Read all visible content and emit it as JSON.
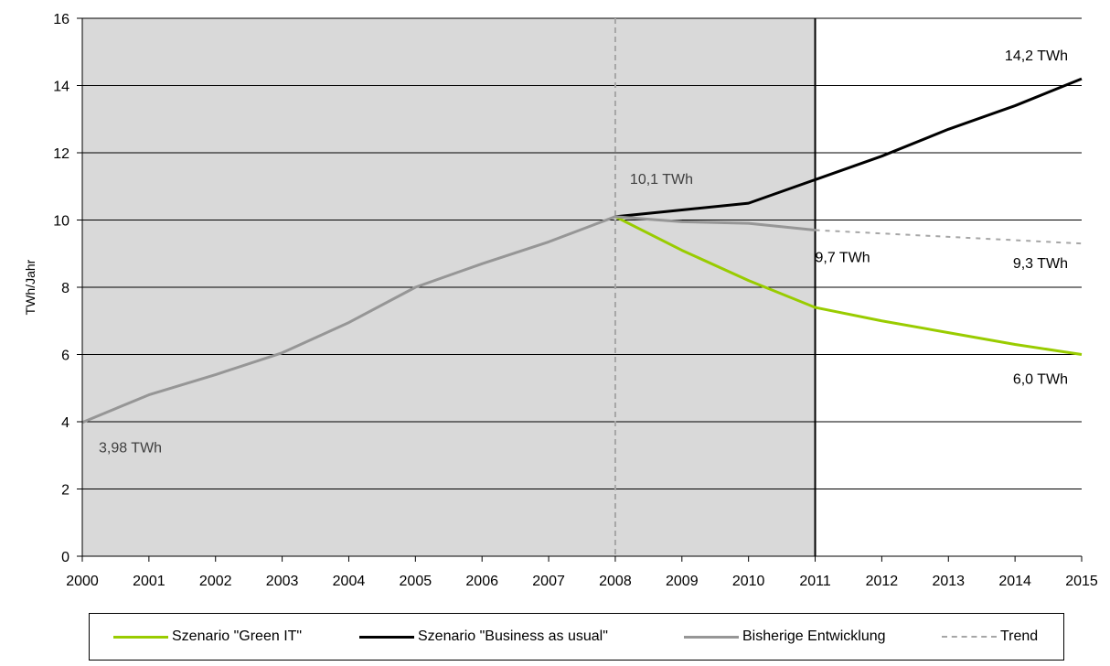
{
  "chart_data": {
    "type": "line",
    "title": "",
    "xlabel": "",
    "ylabel": "TWh/Jahr",
    "ylim": [
      0,
      16
    ],
    "yticks": [
      0,
      2,
      4,
      6,
      8,
      10,
      12,
      14,
      16
    ],
    "x": [
      2000,
      2001,
      2002,
      2003,
      2004,
      2005,
      2006,
      2007,
      2008,
      2009,
      2010,
      2011,
      2012,
      2013,
      2014,
      2015
    ],
    "xtick_labels": [
      "2000",
      "2001",
      "2002",
      "2003",
      "2004",
      "2005",
      "2006",
      "2007",
      "2008",
      "2009",
      "2010",
      "2011",
      "2012",
      "2013",
      "2014",
      "2015"
    ],
    "ytick_labels": [
      "0",
      "2",
      "4",
      "6",
      "8",
      "10",
      "12",
      "14",
      "16"
    ],
    "grid": "horizontal",
    "shaded_region": {
      "x_start": 2000,
      "x_end": 2011,
      "color": "#d9d9d9"
    },
    "reference_lines": [
      {
        "x": 2008,
        "style": "dashed",
        "color": "#a6a6a6"
      },
      {
        "x": 2011,
        "style": "solid",
        "color": "#000000"
      }
    ],
    "series": [
      {
        "name": "Szenario \"Green IT\"",
        "color": "#99cc00",
        "style": "solid",
        "x": [
          2008,
          2009,
          2010,
          2011,
          2012,
          2013,
          2014,
          2015
        ],
        "values": [
          10.1,
          9.1,
          8.2,
          7.4,
          7.0,
          6.65,
          6.3,
          6.0
        ]
      },
      {
        "name": "Szenario \"Business as usual\"",
        "color": "#000000",
        "style": "solid",
        "x": [
          2008,
          2009,
          2010,
          2011,
          2012,
          2013,
          2014,
          2015
        ],
        "values": [
          10.1,
          10.3,
          10.5,
          11.2,
          11.9,
          12.7,
          13.4,
          14.2
        ]
      },
      {
        "name": "Bisherige Entwicklung",
        "color": "#969696",
        "style": "solid",
        "x": [
          2000,
          2001,
          2002,
          2003,
          2004,
          2005,
          2006,
          2007,
          2008,
          2009,
          2010,
          2011
        ],
        "values": [
          3.98,
          4.8,
          5.4,
          6.05,
          6.95,
          8.0,
          8.7,
          9.35,
          10.1,
          9.95,
          9.9,
          9.7
        ]
      },
      {
        "name": "Trend",
        "color": "#a6a6a6",
        "style": "dashed",
        "x": [
          2011,
          2012,
          2013,
          2014,
          2015
        ],
        "values": [
          9.7,
          9.6,
          9.5,
          9.4,
          9.3
        ]
      }
    ],
    "annotations": [
      {
        "text": "3,98 TWh",
        "x": 2000,
        "y": 3.98,
        "color": "#404040"
      },
      {
        "text": "10,1 TWh",
        "x": 2008,
        "y": 10.1,
        "color": "#404040"
      },
      {
        "text": "9,7 TWh",
        "x": 2011,
        "y": 9.7,
        "color": "#000000"
      },
      {
        "text": "14,2 TWh",
        "x": 2015,
        "y": 14.2,
        "color": "#000000"
      },
      {
        "text": "9,3 TWh",
        "x": 2015,
        "y": 9.3,
        "color": "#000000"
      },
      {
        "text": "6,0 TWh",
        "x": 2015,
        "y": 6.0,
        "color": "#000000"
      }
    ],
    "legend": {
      "position": "bottom",
      "items": [
        {
          "label": "Szenario \"Green IT\"",
          "color": "#99cc00",
          "style": "solid"
        },
        {
          "label": "Szenario \"Business as usual\"",
          "color": "#000000",
          "style": "solid"
        },
        {
          "label": "Bisherige Entwicklung",
          "color": "#969696",
          "style": "solid"
        },
        {
          "label": "Trend",
          "color": "#a6a6a6",
          "style": "dashed"
        }
      ]
    }
  }
}
